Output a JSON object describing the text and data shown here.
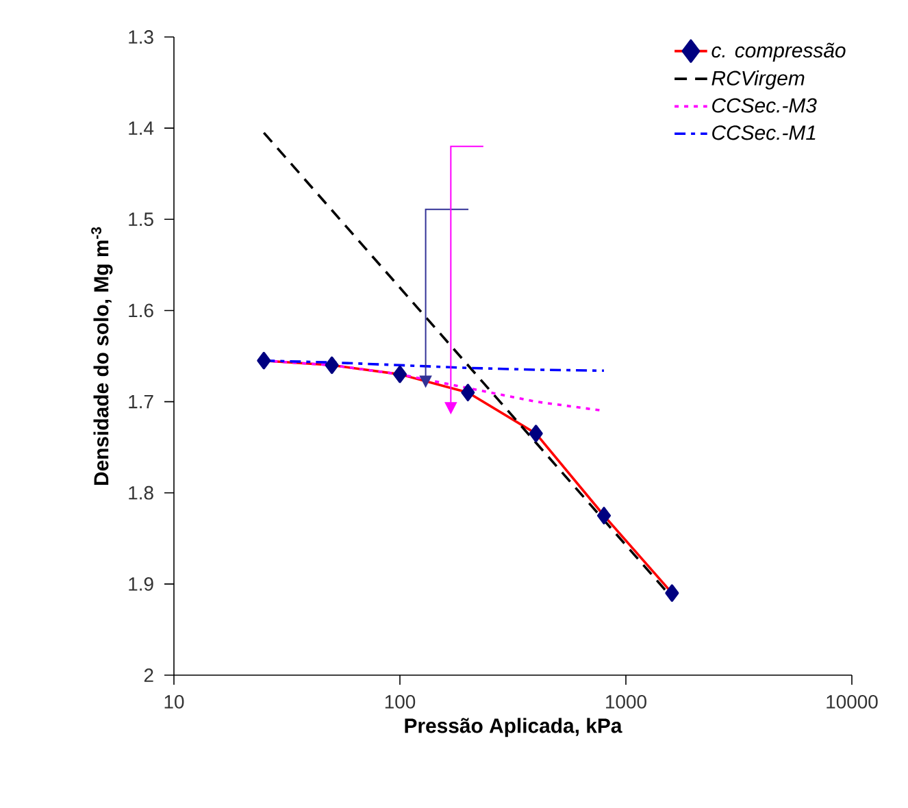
{
  "chart_data": {
    "type": "line",
    "xlabel": "Pressão Aplicada, kPa",
    "ylabel": "Densidade do solo, Mg m$^{-3}$",
    "x": [
      25,
      50,
      100,
      200,
      400,
      800,
      1600
    ],
    "series": [
      {
        "name": "c. compressão",
        "color": "#ff0000",
        "marker": "diamond",
        "line_style": "solid",
        "values": [
          1.655,
          1.66,
          1.67,
          1.69,
          1.735,
          1.825,
          1.91
        ]
      },
      {
        "name": "RCVirgem",
        "color": "#000000",
        "marker": "none",
        "line_style": "dashed",
        "x": [
          25,
          1600
        ],
        "values": [
          1.405,
          1.915
        ]
      },
      {
        "name": "CCSec.-M3",
        "color": "#ff00ff",
        "marker": "none",
        "line_style": "dotted",
        "x": [
          25,
          50,
          100,
          200,
          400,
          800
        ],
        "values": [
          1.655,
          1.66,
          1.67,
          1.685,
          1.7,
          1.71
        ]
      },
      {
        "name": "CCSec.-M1",
        "color": "#0000ff",
        "marker": "none",
        "line_style": "dashdot",
        "x": [
          25,
          50,
          100,
          200,
          400,
          800
        ],
        "values": [
          1.655,
          1.657,
          1.66,
          1.663,
          1.665,
          1.666
        ]
      }
    ],
    "log": "x",
    "xlim": [
      10,
      10000
    ],
    "xticks": [
      10,
      100,
      1000,
      10000
    ],
    "ylim": [
      2,
      1.3
    ],
    "yticks": [
      1.3,
      1.4,
      1.5,
      1.6,
      1.7,
      1.8,
      1.9,
      2
    ],
    "grid": false,
    "legend": "top right"
  }
}
